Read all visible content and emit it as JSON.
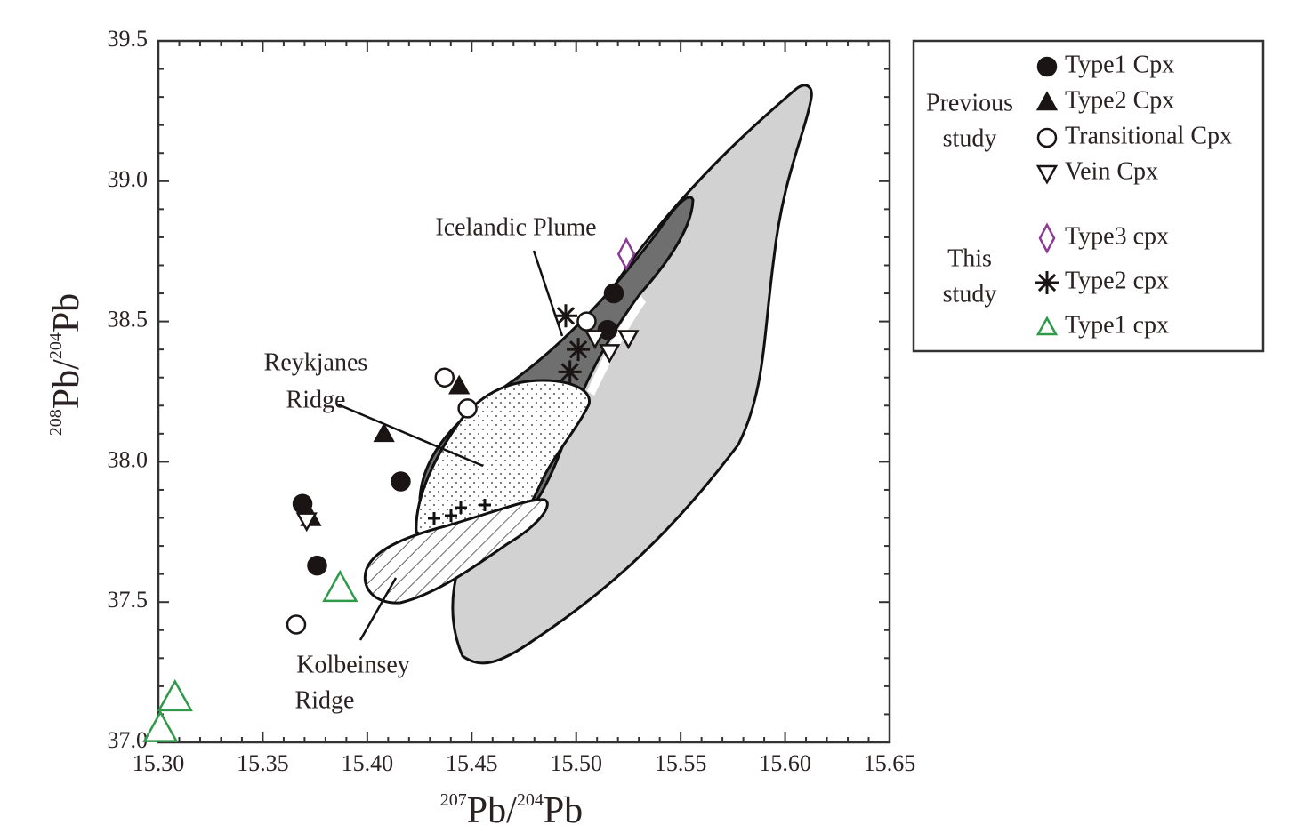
{
  "chart_data": {
    "type": "scatter",
    "xlabel": [
      "207",
      "Pb/",
      "204",
      "Pb"
    ],
    "ylabel": [
      "208",
      "Pb/",
      "204",
      "Pb"
    ],
    "xlim": [
      15.3,
      15.65
    ],
    "ylim": [
      37.0,
      39.5
    ],
    "xticks": [
      {
        "value": 15.3,
        "label": "15.30"
      },
      15.35,
      {
        "value": 15.4,
        "label": "15.40"
      },
      15.45,
      {
        "value": 15.5,
        "label": "15.50"
      },
      15.55,
      {
        "value": 15.6,
        "label": "15.60"
      },
      15.65
    ],
    "yticks": [
      {
        "value": 37.0,
        "label": "37.0"
      },
      37.5,
      {
        "value": 38.0,
        "label": "38.0"
      },
      38.5,
      {
        "value": 39.0,
        "label": "39.0"
      },
      39.5
    ],
    "annotations": [
      [
        "Icelandic Plume"
      ],
      [
        "Reykjanes",
        "Ridge"
      ],
      [
        "Kolbeinsey",
        "Ridge"
      ]
    ],
    "groups": [
      {
        "label": [
          "Previous",
          "study"
        ],
        "series": [
          {
            "name": "Type1 Cpx",
            "marker": "circle",
            "filled": true,
            "color": "#1a1414",
            "x": [
              15.518,
              15.515,
              15.416,
              15.369,
              15.376
            ],
            "y": [
              38.6,
              38.47,
              37.93,
              37.85,
              37.63
            ]
          },
          {
            "name": "Type2 Cpx",
            "marker": "triangle",
            "filled": true,
            "color": "#1a1414",
            "x": [
              15.444,
              15.408,
              15.373
            ],
            "y": [
              38.27,
              38.1,
              37.8
            ]
          },
          {
            "name": "Transitional Cpx",
            "marker": "circle",
            "filled": false,
            "color": "#1a1414",
            "x": [
              15.437,
              15.448,
              15.505,
              15.366
            ],
            "y": [
              38.3,
              38.19,
              38.5,
              37.42
            ]
          },
          {
            "name": "Vein Cpx",
            "marker": "triangle-down",
            "filled": false,
            "color": "#1a1414",
            "x": [
              15.516,
              15.525,
              15.509,
              15.371
            ],
            "y": [
              38.39,
              38.44,
              38.44,
              37.79
            ]
          }
        ]
      },
      {
        "label": [
          "This",
          "study"
        ],
        "series": [
          {
            "name": "Type3 cpx",
            "marker": "diamond",
            "filled": false,
            "color": "#8b3a96",
            "x": [
              15.524
            ],
            "y": [
              38.74
            ]
          },
          {
            "name": "Type2 cpx",
            "marker": "asterisk",
            "filled": false,
            "color": "#1a1414",
            "x": [
              15.495,
              15.501,
              15.497
            ],
            "y": [
              38.52,
              38.4,
              38.32
            ]
          },
          {
            "name": "Type1 cpx",
            "marker": "triangle",
            "filled": false,
            "color": "#2e9a4a",
            "x": [
              15.387,
              15.308,
              15.301
            ],
            "y": [
              37.55,
              37.16,
              37.05
            ]
          }
        ]
      }
    ]
  }
}
